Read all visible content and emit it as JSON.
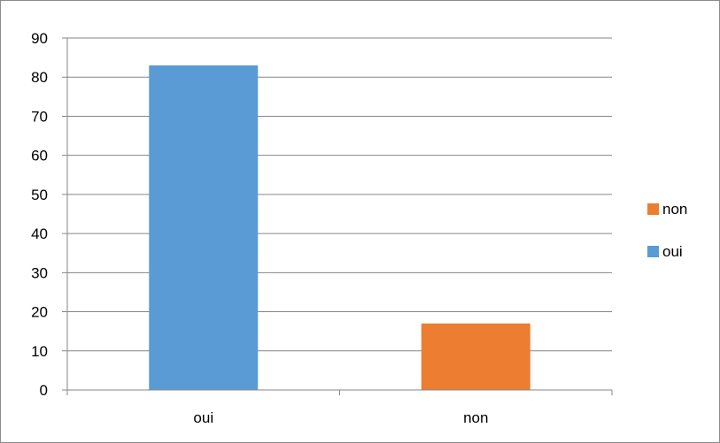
{
  "chart_data": {
    "type": "bar",
    "categories": [
      "oui",
      "non"
    ],
    "values": [
      83,
      17
    ],
    "bar_colors": [
      "#5b9bd5",
      "#ed7d31"
    ],
    "ylim": [
      0,
      90
    ],
    "y_ticks": [
      "0",
      "10",
      "20",
      "30",
      "40",
      "50",
      "60",
      "70",
      "80",
      "90"
    ],
    "grid": true,
    "legend": {
      "position": "right",
      "entries": [
        {
          "label": "non",
          "color": "#ed7d31"
        },
        {
          "label": "oui",
          "color": "#5b9bd5"
        }
      ]
    },
    "gridline_color": "#868686",
    "axis_color": "#868686"
  }
}
